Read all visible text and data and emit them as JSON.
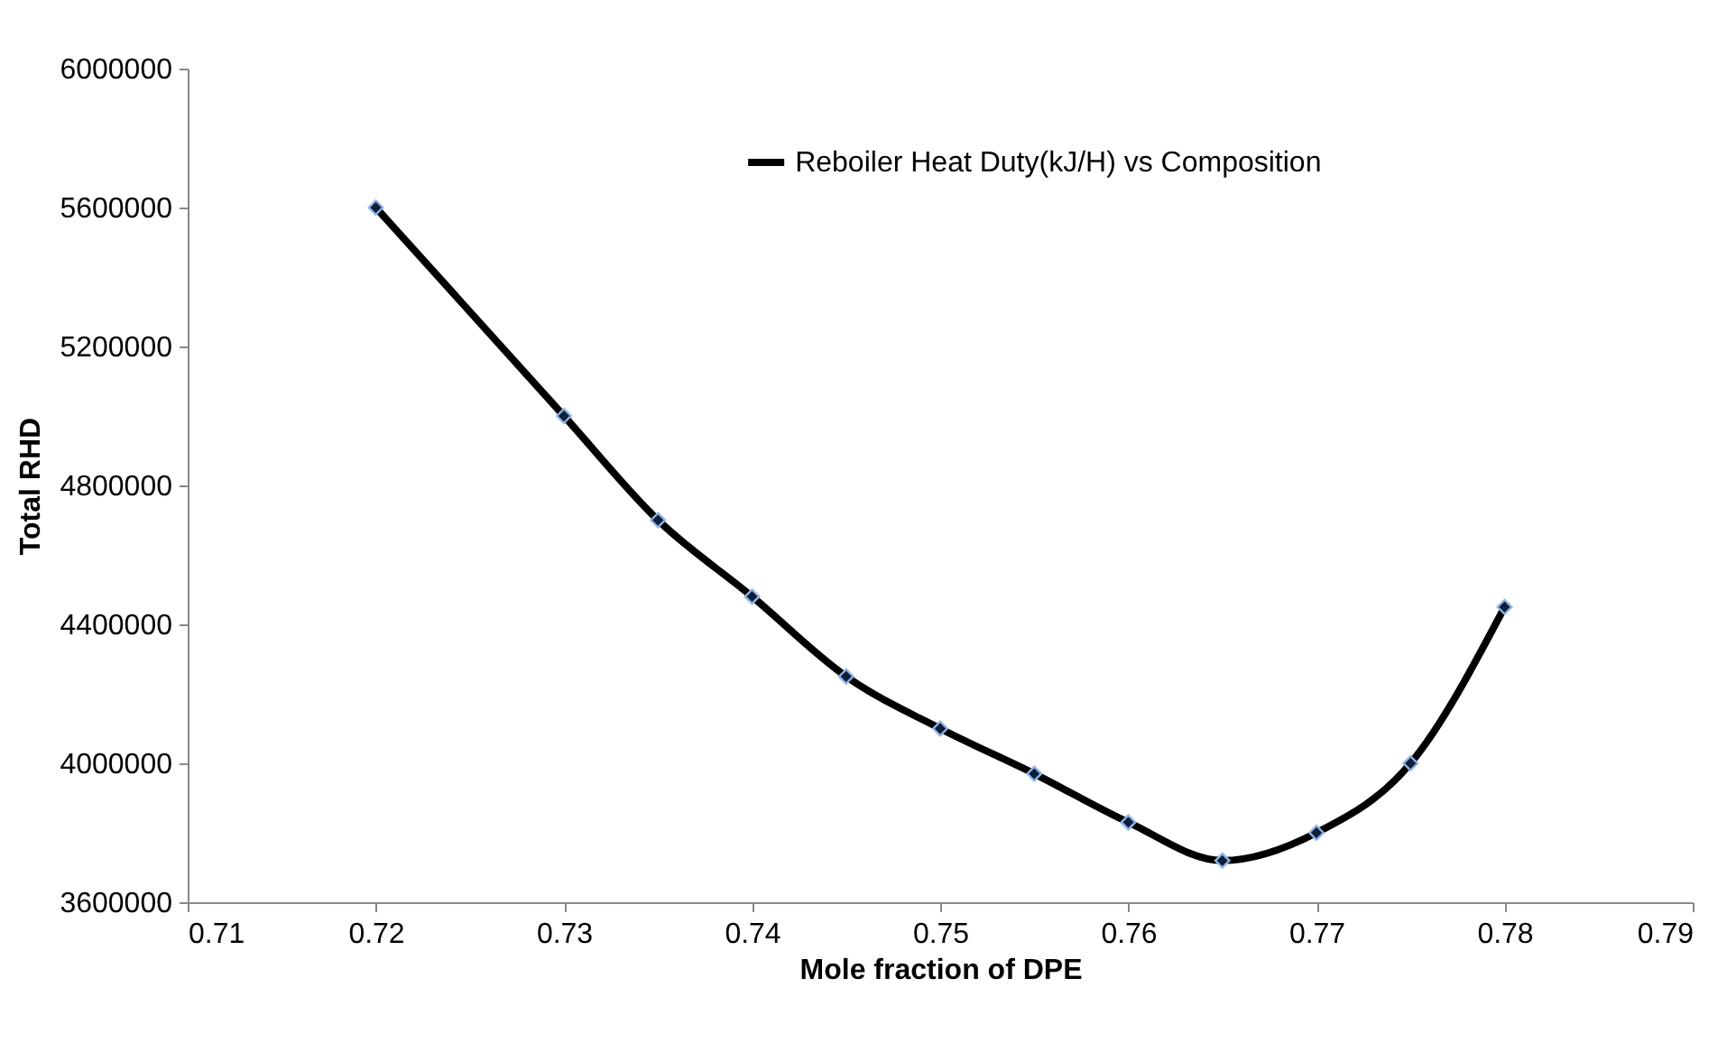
{
  "chart_data": {
    "type": "line",
    "xlabel": "Mole fraction of DPE",
    "ylabel": "Total RHD",
    "x": [
      0.72,
      0.73,
      0.735,
      0.74,
      0.745,
      0.75,
      0.755,
      0.76,
      0.765,
      0.77,
      0.775,
      0.78
    ],
    "series": [
      {
        "name": "Reboiler Heat Duty(kJ/H) vs Composition",
        "color": "#000000",
        "values": [
          5600000,
          5000000,
          4700000,
          4480000,
          4250000,
          4100000,
          3970000,
          3830000,
          3720000,
          3800000,
          4000000,
          4450000
        ]
      }
    ],
    "xlim": [
      0.71,
      0.79
    ],
    "xticks": [
      0.71,
      0.72,
      0.73,
      0.74,
      0.75,
      0.76,
      0.77,
      0.78,
      0.79
    ],
    "ylim": [
      3600000,
      6000000
    ],
    "yticks": [
      3600000,
      4000000,
      4400000,
      4800000,
      5200000,
      5600000,
      6000000
    ],
    "grid": false,
    "legend": "top",
    "marker": "diamond",
    "line_style": "solid"
  }
}
